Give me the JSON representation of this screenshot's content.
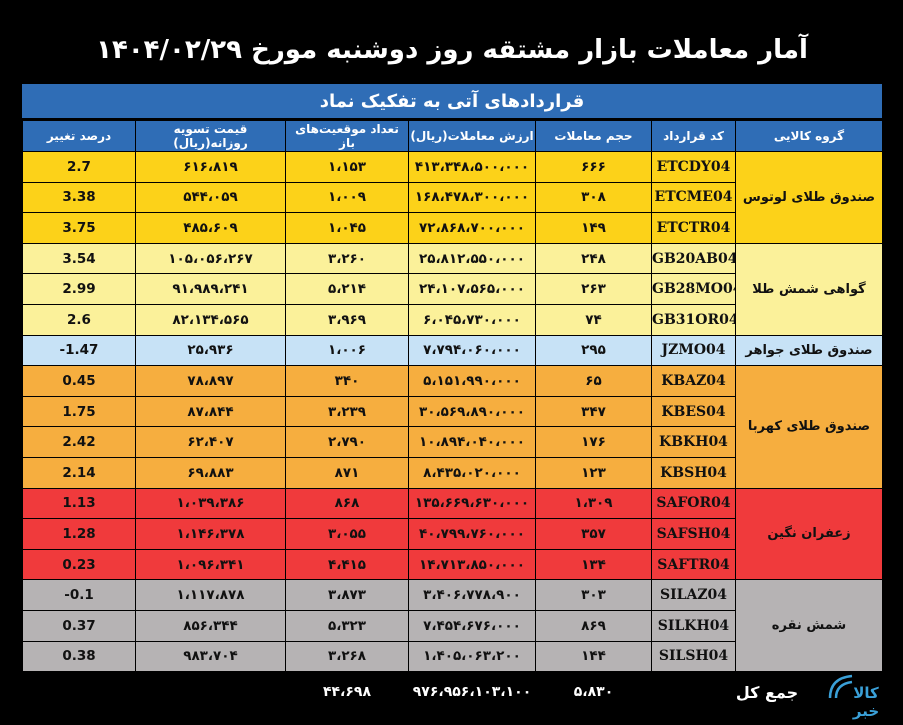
{
  "title": "آمار معاملات بازار مشتقه روز دوشنبه مورخ ۱۴۰۴/۰۲/۲۹",
  "subtitle": "قراردادهای آتی به تفکیک نماد",
  "headers": {
    "group": "گروه کالایی",
    "code": "کد قرارداد",
    "volume": "حجم معاملات",
    "value": "ارزش معاملات(ریال)",
    "open": "تعداد موقعیت‌های باز",
    "settle": "قیمت تسویه روزانه(ریال)",
    "change": "درصد تغییر"
  },
  "groups": [
    {
      "name": "صندوق طلای لوتوس",
      "color": "#fcd219",
      "rows": [
        {
          "code": "ETCDY04",
          "volume": "۶۶۶",
          "value": "۴۱۳،۳۴۸،۵۰۰،۰۰۰",
          "open": "۱،۱۵۳",
          "settle": "۶۱۶،۸۱۹",
          "change": "2.7"
        },
        {
          "code": "ETCME04",
          "volume": "۳۰۸",
          "value": "۱۶۸،۴۷۸،۳۰۰،۰۰۰",
          "open": "۱،۰۰۹",
          "settle": "۵۴۴،۰۵۹",
          "change": "3.38"
        },
        {
          "code": "ETCTR04",
          "volume": "۱۴۹",
          "value": "۷۲،۸۶۸،۷۰۰،۰۰۰",
          "open": "۱،۰۴۵",
          "settle": "۴۸۵،۶۰۹",
          "change": "3.75"
        }
      ]
    },
    {
      "name": "گواهی شمش طلا",
      "color": "#fbf19a",
      "rows": [
        {
          "code": "GB20AB04",
          "volume": "۲۴۸",
          "value": "۲۵،۸۱۲،۵۵۰،۰۰۰",
          "open": "۳،۲۶۰",
          "settle": "۱۰۵،۰۵۶،۲۶۷",
          "change": "3.54"
        },
        {
          "code": "GB28MO04",
          "volume": "۲۶۳",
          "value": "۲۴،۱۰۷،۵۶۵،۰۰۰",
          "open": "۵،۲۱۴",
          "settle": "۹۱،۹۸۹،۲۴۱",
          "change": "2.99"
        },
        {
          "code": "GB31OR04",
          "volume": "۷۴",
          "value": "۶،۰۴۵،۷۳۰،۰۰۰",
          "open": "۳،۹۶۹",
          "settle": "۸۲،۱۳۴،۵۶۵",
          "change": "2.6"
        }
      ]
    },
    {
      "name": "صندوق طلای جواهر",
      "color": "#c7e2f6",
      "rows": [
        {
          "code": "JZMO04",
          "volume": "۲۹۵",
          "value": "۷،۷۹۴،۰۶۰،۰۰۰",
          "open": "۱،۰۰۶",
          "settle": "۲۵،۹۳۶",
          "change": "-1.47"
        }
      ]
    },
    {
      "name": "صندوق طلای کهربا",
      "color": "#f6ae3f",
      "rows": [
        {
          "code": "KBAZ04",
          "volume": "۶۵",
          "value": "۵،۱۵۱،۹۹۰،۰۰۰",
          "open": "۳۴۰",
          "settle": "۷۸،۸۹۷",
          "change": "0.45"
        },
        {
          "code": "KBES04",
          "volume": "۳۴۷",
          "value": "۳۰،۵۶۹،۸۹۰،۰۰۰",
          "open": "۳،۲۳۹",
          "settle": "۸۷،۸۴۴",
          "change": "1.75"
        },
        {
          "code": "KBKH04",
          "volume": "۱۷۶",
          "value": "۱۰،۸۹۴،۰۴۰،۰۰۰",
          "open": "۲،۷۹۰",
          "settle": "۶۲،۴۰۷",
          "change": "2.42"
        },
        {
          "code": "KBSH04",
          "volume": "۱۲۳",
          "value": "۸،۴۳۵،۰۲۰،۰۰۰",
          "open": "۸۷۱",
          "settle": "۶۹،۸۸۳",
          "change": "2.14"
        }
      ]
    },
    {
      "name": "زعفران نگین",
      "color": "#f03a3c",
      "rows": [
        {
          "code": "SAFOR04",
          "volume": "۱،۳۰۹",
          "value": "۱۳۵،۶۶۹،۶۳۰،۰۰۰",
          "open": "۸۶۸",
          "settle": "۱،۰۳۹،۳۸۶",
          "change": "1.13"
        },
        {
          "code": "SAFSH04",
          "volume": "۳۵۷",
          "value": "۴۰،۷۹۹،۷۶۰،۰۰۰",
          "open": "۳،۰۵۵",
          "settle": "۱،۱۴۶،۳۷۸",
          "change": "1.28"
        },
        {
          "code": "SAFTR04",
          "volume": "۱۳۴",
          "value": "۱۴،۷۱۳،۸۵۰،۰۰۰",
          "open": "۴،۴۱۵",
          "settle": "۱،۰۹۶،۳۴۱",
          "change": "0.23"
        }
      ]
    },
    {
      "name": "شمش نقره",
      "color": "#b6b3b4",
      "rows": [
        {
          "code": "SILAZ04",
          "volume": "۳۰۳",
          "value": "۳،۴۰۶،۷۷۸،۹۰۰",
          "open": "۳،۸۷۳",
          "settle": "۱،۱۱۷،۸۷۸",
          "change": "-0.1"
        },
        {
          "code": "SILKH04",
          "volume": "۸۶۹",
          "value": "۷،۴۵۴،۶۷۶،۰۰۰",
          "open": "۵،۳۲۳",
          "settle": "۸۵۶،۳۴۴",
          "change": "0.37"
        },
        {
          "code": "SILSH04",
          "volume": "۱۴۴",
          "value": "۱،۴۰۵،۰۶۳،۲۰۰",
          "open": "۳،۲۶۸",
          "settle": "۹۸۳،۷۰۴",
          "change": "0.38"
        }
      ]
    }
  ],
  "total": {
    "label": "جمع کل",
    "volume": "۵،۸۳۰",
    "value": "۹۷۶،۹۵۶،۱۰۳،۱۰۰",
    "open": "۴۴،۶۹۸"
  },
  "logo": {
    "text_top": "کالا",
    "text_bottom": "خبر"
  }
}
